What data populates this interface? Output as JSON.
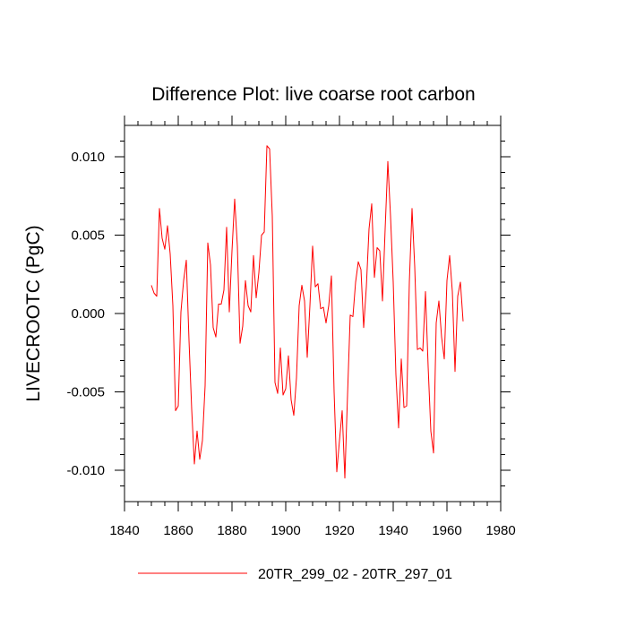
{
  "chart_data": {
    "type": "line",
    "title": "Difference Plot: live coarse root carbon",
    "xlabel": "",
    "ylabel": "LIVECROOTC  (PgC)",
    "xlim": [
      1840,
      1980
    ],
    "ylim": [
      -0.012,
      0.012
    ],
    "x_ticks": [
      1840,
      1860,
      1880,
      1900,
      1920,
      1940,
      1960,
      1980
    ],
    "x_tick_labels": [
      "1840",
      "1860",
      "1880",
      "1900",
      "1920",
      "1940",
      "1960",
      "1980"
    ],
    "y_ticks": [
      -0.01,
      -0.005,
      0.0,
      0.005,
      0.01
    ],
    "y_tick_labels": [
      "-0.010",
      "-0.005",
      "0.000",
      "0.005",
      "0.010"
    ],
    "grid": false,
    "legend_position": "bottom-center",
    "series": [
      {
        "name": "20TR_299_02 - 20TR_297_01",
        "color": "#ff0000",
        "x": [
          1850,
          1851,
          1852,
          1853,
          1854,
          1855,
          1856,
          1857,
          1858,
          1859,
          1860,
          1861,
          1862,
          1863,
          1864,
          1865,
          1866,
          1867,
          1868,
          1869,
          1870,
          1871,
          1872,
          1873,
          1874,
          1875,
          1876,
          1877,
          1878,
          1879,
          1880,
          1881,
          1882,
          1883,
          1884,
          1885,
          1886,
          1887,
          1888,
          1889,
          1890,
          1891,
          1892,
          1893,
          1894,
          1895,
          1896,
          1897,
          1898,
          1899,
          1900,
          1901,
          1902,
          1903,
          1904,
          1905,
          1906,
          1907,
          1908,
          1909,
          1910,
          1911,
          1912,
          1913,
          1914,
          1915,
          1916,
          1917,
          1918,
          1919,
          1920,
          1921,
          1922,
          1923,
          1924,
          1925,
          1926,
          1927,
          1928,
          1929,
          1930,
          1931,
          1932,
          1933,
          1934,
          1935,
          1936,
          1937,
          1938,
          1939,
          1940,
          1941,
          1942,
          1943,
          1944,
          1945,
          1946,
          1947,
          1948,
          1949,
          1950,
          1951,
          1952,
          1953,
          1954,
          1955,
          1956,
          1957,
          1958,
          1959,
          1960,
          1961,
          1962,
          1963,
          1964,
          1965,
          1966
        ],
        "values": [
          0.0018,
          0.0013,
          0.0011,
          0.0067,
          0.0048,
          0.0041,
          0.0056,
          0.0038,
          0.0005,
          -0.0062,
          -0.0059,
          0.0001,
          0.0021,
          0.0034,
          -0.0017,
          -0.0061,
          -0.0096,
          -0.0075,
          -0.0093,
          -0.0081,
          -0.0046,
          0.0045,
          0.0031,
          -0.0009,
          -0.0015,
          0.0006,
          0.0006,
          0.0015,
          0.0055,
          0.0001,
          0.004,
          0.0073,
          0.0043,
          -0.0019,
          -0.0008,
          0.0021,
          0.0005,
          0.0001,
          0.0037,
          0.001,
          0.0026,
          0.005,
          0.0052,
          0.0107,
          0.0105,
          0.0062,
          -0.0044,
          -0.0051,
          -0.0022,
          -0.0052,
          -0.0048,
          -0.0027,
          -0.0055,
          -0.0065,
          -0.0041,
          0.0005,
          0.0018,
          0.0008,
          -0.0028,
          0.0005,
          0.0043,
          0.0017,
          0.0019,
          0.0003,
          0.0004,
          -0.0006,
          0.0005,
          0.0024,
          -0.005,
          -0.0101,
          -0.0081,
          -0.0062,
          -0.0105,
          -0.0052,
          -0.0001,
          -0.0002,
          0.002,
          0.0033,
          0.0028,
          -0.0009,
          0.0017,
          0.0054,
          0.007,
          0.0023,
          0.0042,
          0.004,
          0.0008,
          0.0054,
          0.0097,
          0.0062,
          0.002,
          -0.0039,
          -0.0073,
          -0.0029,
          -0.006,
          -0.0059,
          0.002,
          0.0067,
          0.003,
          -0.0023,
          -0.0022,
          -0.0024,
          0.0014,
          -0.0034,
          -0.0075,
          -0.0089,
          -0.0006,
          0.0008,
          -0.0015,
          -0.0029,
          0.0021,
          0.0037,
          0.0014,
          -0.0037,
          0.0011,
          0.002,
          -0.0005
        ]
      }
    ]
  }
}
